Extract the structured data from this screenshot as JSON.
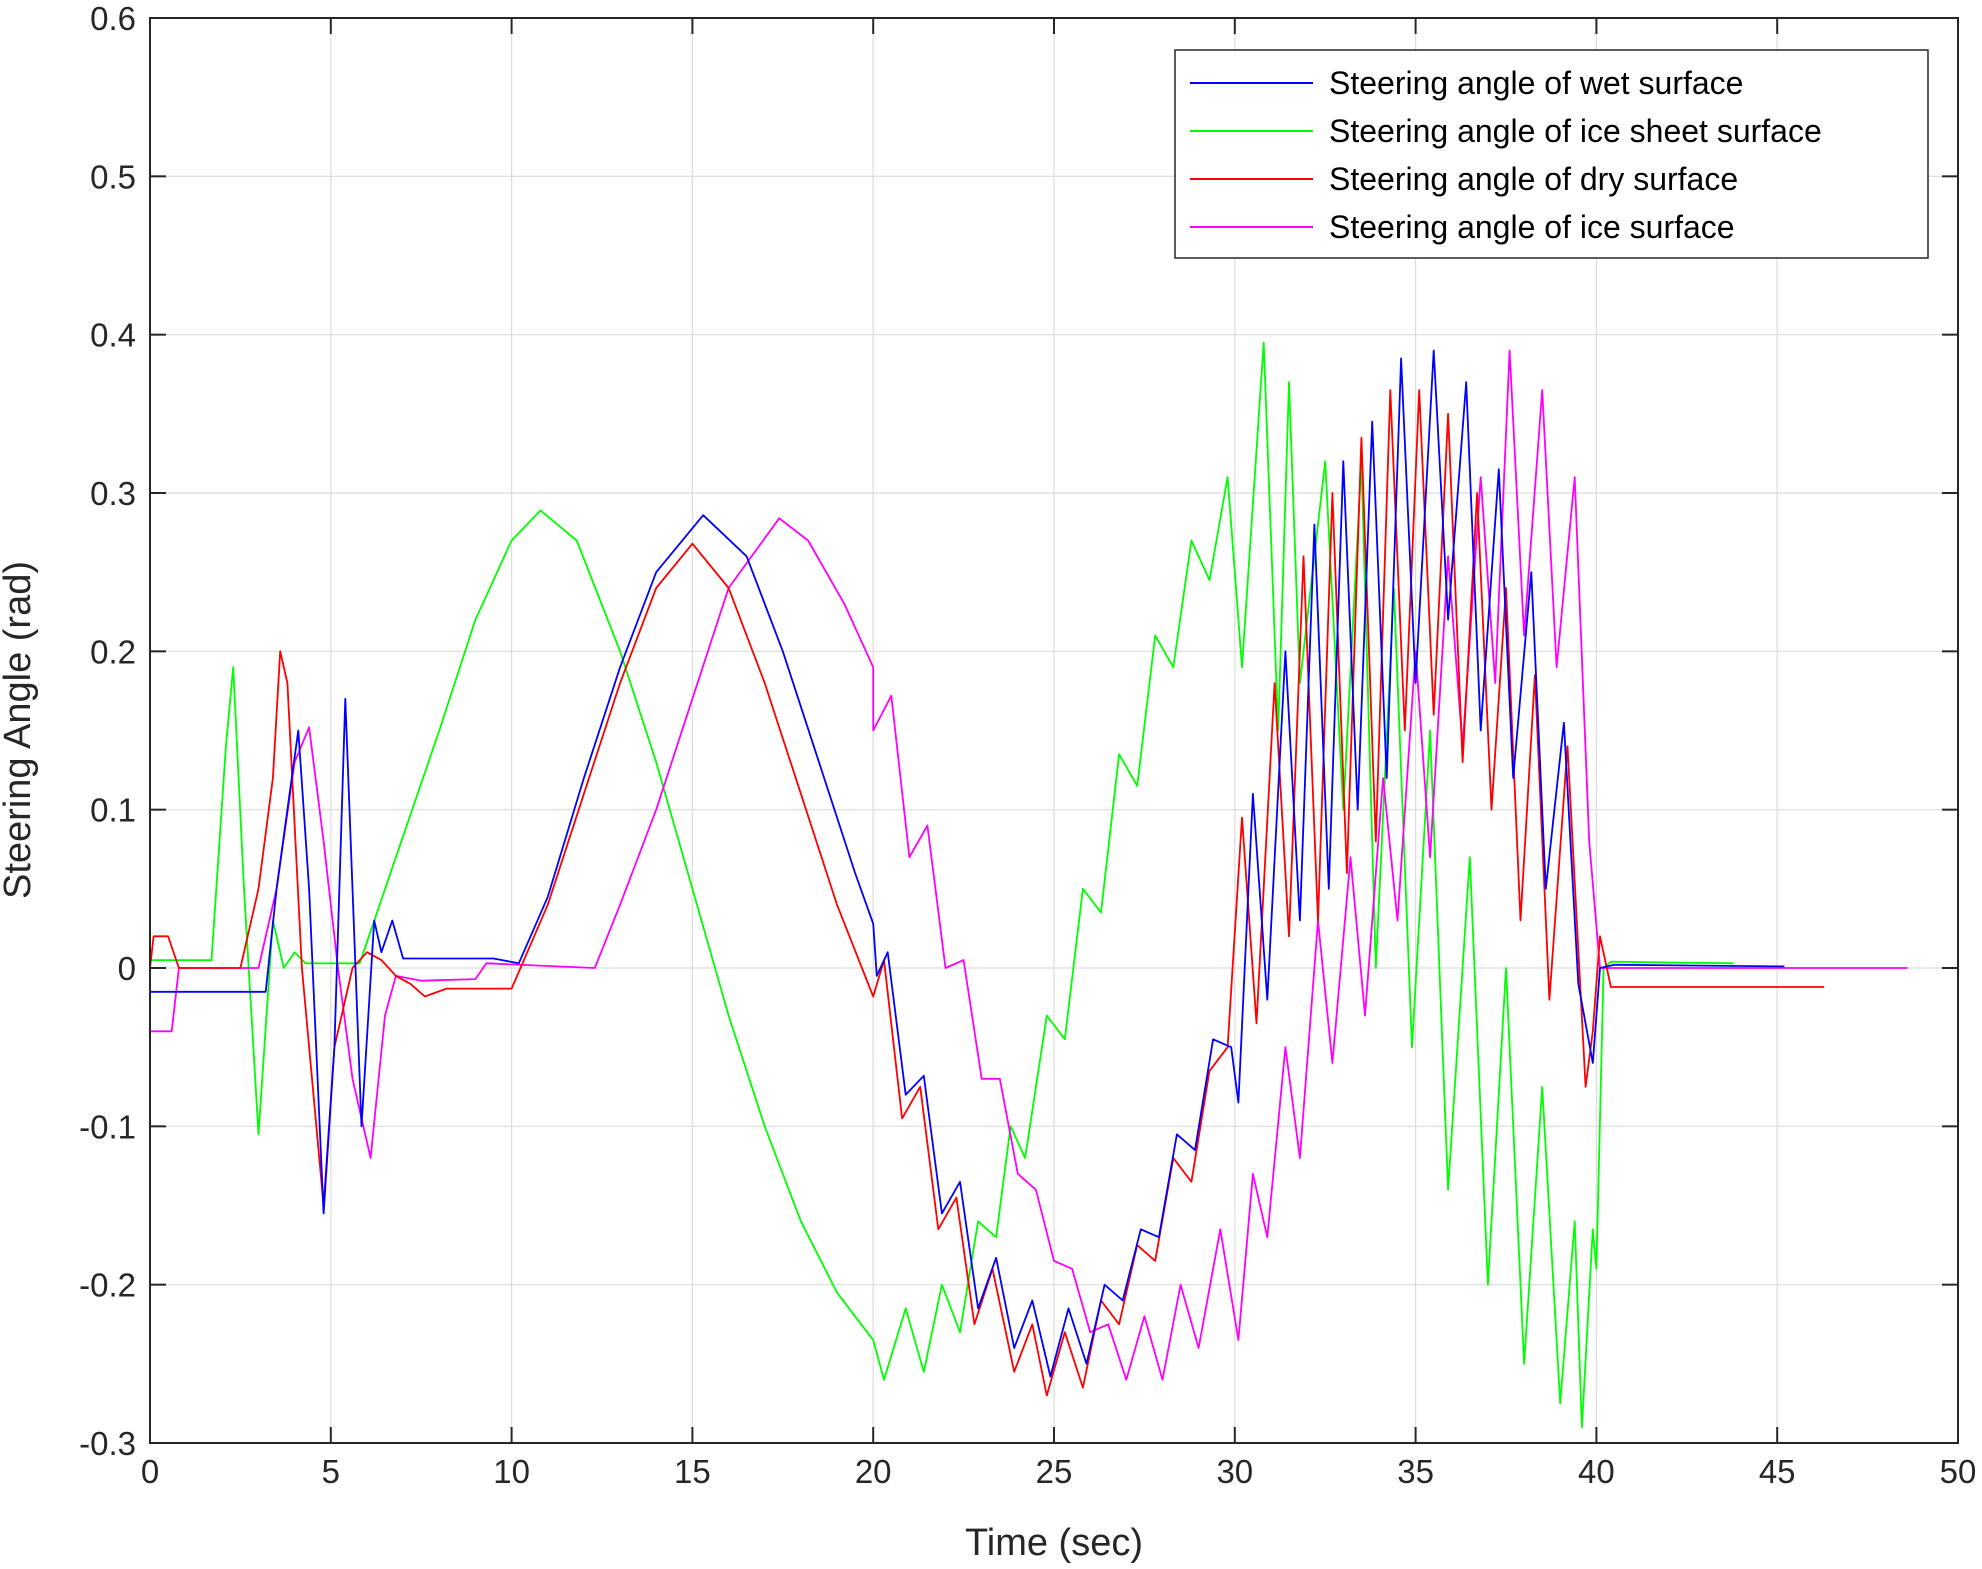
{
  "chart_data": {
    "type": "line",
    "title": "",
    "xlabel": "Time (sec)",
    "ylabel": "Steering Angle (rad)",
    "xlim": [
      0,
      50
    ],
    "ylim": [
      -0.3,
      0.6
    ],
    "xticks": [
      0,
      5,
      10,
      15,
      20,
      25,
      30,
      35,
      40,
      45,
      50
    ],
    "yticks": [
      -0.3,
      -0.2,
      -0.1,
      0,
      0.1,
      0.2,
      0.3,
      0.4,
      0.5,
      0.6
    ],
    "xtick_labels": [
      "0",
      "5",
      "10",
      "15",
      "20",
      "25",
      "30",
      "35",
      "40",
      "45",
      "50"
    ],
    "ytick_labels": [
      "-0.3",
      "-0.2",
      "-0.1",
      "0",
      "0.1",
      "0.2",
      "0.3",
      "0.4",
      "0.5",
      "0.6"
    ],
    "grid": true,
    "legend_position": "top-right",
    "series": [
      {
        "name": "Steering angle of wet surface",
        "color": "#0000ff",
        "points": [
          [
            0,
            -0.015
          ],
          [
            1,
            -0.015
          ],
          [
            2,
            -0.015
          ],
          [
            3.2,
            -0.015
          ],
          [
            3.5,
            0.05
          ],
          [
            3.8,
            0.1
          ],
          [
            4.1,
            0.15
          ],
          [
            4.4,
            0.05
          ],
          [
            4.8,
            -0.155
          ],
          [
            5.1,
            -0.05
          ],
          [
            5.4,
            0.17
          ],
          [
            5.6,
            0.05
          ],
          [
            5.85,
            -0.1
          ],
          [
            6.2,
            0.03
          ],
          [
            6.4,
            0.01
          ],
          [
            6.7,
            0.03
          ],
          [
            7.0,
            0.006
          ],
          [
            8,
            0.006
          ],
          [
            9.5,
            0.006
          ],
          [
            10.2,
            0.003
          ],
          [
            11,
            0.045
          ],
          [
            12,
            0.12
          ],
          [
            13,
            0.19
          ],
          [
            14,
            0.25
          ],
          [
            15.3,
            0.286
          ],
          [
            16.5,
            0.26
          ],
          [
            17.5,
            0.2
          ],
          [
            18.5,
            0.13
          ],
          [
            19.5,
            0.06
          ],
          [
            20.0,
            0.028
          ],
          [
            20.1,
            -0.005
          ],
          [
            20.4,
            0.01
          ],
          [
            20.9,
            -0.08
          ],
          [
            21.4,
            -0.068
          ],
          [
            21.9,
            -0.155
          ],
          [
            22.4,
            -0.135
          ],
          [
            22.9,
            -0.215
          ],
          [
            23.4,
            -0.183
          ],
          [
            23.9,
            -0.24
          ],
          [
            24.4,
            -0.21
          ],
          [
            24.9,
            -0.258
          ],
          [
            25.4,
            -0.215
          ],
          [
            25.9,
            -0.25
          ],
          [
            26.4,
            -0.2
          ],
          [
            26.9,
            -0.21
          ],
          [
            27.4,
            -0.165
          ],
          [
            27.9,
            -0.17
          ],
          [
            28.4,
            -0.105
          ],
          [
            28.9,
            -0.115
          ],
          [
            29.4,
            -0.045
          ],
          [
            29.9,
            -0.05
          ],
          [
            30.1,
            -0.085
          ],
          [
            30.5,
            0.11
          ],
          [
            30.9,
            -0.02
          ],
          [
            31.4,
            0.2
          ],
          [
            31.8,
            0.03
          ],
          [
            32.2,
            0.28
          ],
          [
            32.6,
            0.05
          ],
          [
            33.0,
            0.32
          ],
          [
            33.4,
            0.1
          ],
          [
            33.8,
            0.345
          ],
          [
            34.2,
            0.12
          ],
          [
            34.6,
            0.385
          ],
          [
            35.0,
            0.18
          ],
          [
            35.5,
            0.39
          ],
          [
            35.9,
            0.22
          ],
          [
            36.4,
            0.37
          ],
          [
            36.8,
            0.15
          ],
          [
            37.3,
            0.315
          ],
          [
            37.7,
            0.12
          ],
          [
            38.2,
            0.25
          ],
          [
            38.6,
            0.05
          ],
          [
            39.1,
            0.155
          ],
          [
            39.5,
            -0.01
          ],
          [
            39.9,
            -0.06
          ],
          [
            40.1,
            0.0
          ],
          [
            40.5,
            0.002
          ],
          [
            45.2,
            0.001
          ]
        ]
      },
      {
        "name": "Steering angle of ice sheet surface",
        "color": "#00ff00",
        "points": [
          [
            0,
            0.005
          ],
          [
            1,
            0.005
          ],
          [
            1.7,
            0.005
          ],
          [
            2.1,
            0.14
          ],
          [
            2.3,
            0.19
          ],
          [
            2.6,
            0.05
          ],
          [
            3.0,
            -0.105
          ],
          [
            3.4,
            0.03
          ],
          [
            3.7,
            0.0
          ],
          [
            4.0,
            0.01
          ],
          [
            4.3,
            0.003
          ],
          [
            5,
            0.003
          ],
          [
            5.8,
            0.003
          ],
          [
            6.8,
            0.07
          ],
          [
            8,
            0.15
          ],
          [
            9,
            0.22
          ],
          [
            10,
            0.27
          ],
          [
            10.8,
            0.289
          ],
          [
            11.8,
            0.27
          ],
          [
            13,
            0.2
          ],
          [
            14,
            0.13
          ],
          [
            15,
            0.05
          ],
          [
            16,
            -0.03
          ],
          [
            17,
            -0.1
          ],
          [
            18,
            -0.16
          ],
          [
            19,
            -0.205
          ],
          [
            20.0,
            -0.235
          ],
          [
            20.3,
            -0.26
          ],
          [
            20.9,
            -0.215
          ],
          [
            21.4,
            -0.255
          ],
          [
            21.9,
            -0.2
          ],
          [
            22.4,
            -0.23
          ],
          [
            22.9,
            -0.16
          ],
          [
            23.4,
            -0.17
          ],
          [
            23.8,
            -0.1
          ],
          [
            24.2,
            -0.12
          ],
          [
            24.8,
            -0.03
          ],
          [
            25.3,
            -0.045
          ],
          [
            25.8,
            0.05
          ],
          [
            26.3,
            0.035
          ],
          [
            26.8,
            0.135
          ],
          [
            27.3,
            0.115
          ],
          [
            27.8,
            0.21
          ],
          [
            28.3,
            0.19
          ],
          [
            28.8,
            0.27
          ],
          [
            29.3,
            0.245
          ],
          [
            29.8,
            0.31
          ],
          [
            30.2,
            0.19
          ],
          [
            30.8,
            0.395
          ],
          [
            31.2,
            0.15
          ],
          [
            31.5,
            0.37
          ],
          [
            31.8,
            0.18
          ],
          [
            32.5,
            0.32
          ],
          [
            33,
            0.1
          ],
          [
            33.5,
            0.32
          ],
          [
            33.9,
            0.0
          ],
          [
            34.4,
            0.24
          ],
          [
            34.9,
            -0.05
          ],
          [
            35.4,
            0.15
          ],
          [
            35.9,
            -0.14
          ],
          [
            36.5,
            0.07
          ],
          [
            37.0,
            -0.2
          ],
          [
            37.5,
            0.0
          ],
          [
            38.0,
            -0.25
          ],
          [
            38.5,
            -0.075
          ],
          [
            39.0,
            -0.275
          ],
          [
            39.4,
            -0.16
          ],
          [
            39.6,
            -0.29
          ],
          [
            39.9,
            -0.165
          ],
          [
            40.0,
            -0.19
          ],
          [
            40.2,
            0.0
          ],
          [
            40.4,
            0.004
          ],
          [
            43.8,
            0.003
          ]
        ]
      },
      {
        "name": "Steering angle of dry surface",
        "color": "#ff0000",
        "points": [
          [
            0,
            0.0
          ],
          [
            0.1,
            0.02
          ],
          [
            0.5,
            0.02
          ],
          [
            0.8,
            0.0
          ],
          [
            1.5,
            0.0
          ],
          [
            2.5,
            0.0
          ],
          [
            3.0,
            0.05
          ],
          [
            3.4,
            0.12
          ],
          [
            3.6,
            0.2
          ],
          [
            3.8,
            0.18
          ],
          [
            4.2,
            0.0
          ],
          [
            4.8,
            -0.15
          ],
          [
            5.1,
            -0.05
          ],
          [
            5.6,
            0.0
          ],
          [
            6.0,
            0.01
          ],
          [
            6.4,
            0.005
          ],
          [
            6.8,
            -0.005
          ],
          [
            7.2,
            -0.01
          ],
          [
            7.6,
            -0.018
          ],
          [
            8.2,
            -0.013
          ],
          [
            9.5,
            -0.013
          ],
          [
            10,
            -0.013
          ],
          [
            11,
            0.04
          ],
          [
            12,
            0.11
          ],
          [
            13,
            0.18
          ],
          [
            14,
            0.24
          ],
          [
            15.0,
            0.268
          ],
          [
            16,
            0.24
          ],
          [
            17,
            0.18
          ],
          [
            18,
            0.11
          ],
          [
            19,
            0.04
          ],
          [
            20.0,
            -0.018
          ],
          [
            20.3,
            0.005
          ],
          [
            20.8,
            -0.095
          ],
          [
            21.3,
            -0.075
          ],
          [
            21.8,
            -0.165
          ],
          [
            22.3,
            -0.145
          ],
          [
            22.8,
            -0.225
          ],
          [
            23.3,
            -0.19
          ],
          [
            23.9,
            -0.255
          ],
          [
            24.4,
            -0.225
          ],
          [
            24.8,
            -0.27
          ],
          [
            25.3,
            -0.23
          ],
          [
            25.8,
            -0.265
          ],
          [
            26.3,
            -0.21
          ],
          [
            26.8,
            -0.225
          ],
          [
            27.3,
            -0.175
          ],
          [
            27.8,
            -0.185
          ],
          [
            28.3,
            -0.12
          ],
          [
            28.8,
            -0.135
          ],
          [
            29.3,
            -0.065
          ],
          [
            29.8,
            -0.05
          ],
          [
            30.2,
            0.095
          ],
          [
            30.6,
            -0.035
          ],
          [
            31.1,
            0.18
          ],
          [
            31.5,
            0.02
          ],
          [
            31.9,
            0.26
          ],
          [
            32.3,
            0.03
          ],
          [
            32.7,
            0.3
          ],
          [
            33.1,
            0.06
          ],
          [
            33.5,
            0.335
          ],
          [
            33.9,
            0.08
          ],
          [
            34.3,
            0.365
          ],
          [
            34.7,
            0.15
          ],
          [
            35.1,
            0.365
          ],
          [
            35.5,
            0.16
          ],
          [
            35.9,
            0.35
          ],
          [
            36.3,
            0.13
          ],
          [
            36.7,
            0.3
          ],
          [
            37.1,
            0.1
          ],
          [
            37.5,
            0.24
          ],
          [
            37.9,
            0.03
          ],
          [
            38.3,
            0.185
          ],
          [
            38.7,
            -0.02
          ],
          [
            39.2,
            0.14
          ],
          [
            39.7,
            -0.075
          ],
          [
            39.9,
            -0.04
          ],
          [
            40.1,
            0.02
          ],
          [
            40.4,
            -0.012
          ],
          [
            46.3,
            -0.012
          ]
        ]
      },
      {
        "name": "Steering angle of ice surface",
        "color": "#ff00ff",
        "points": [
          [
            0,
            -0.04
          ],
          [
            0.6,
            -0.04
          ],
          [
            0.8,
            0.0
          ],
          [
            2,
            0.0
          ],
          [
            3.0,
            0.0
          ],
          [
            3.5,
            0.05
          ],
          [
            4.0,
            0.13
          ],
          [
            4.4,
            0.152
          ],
          [
            4.8,
            0.08
          ],
          [
            5.2,
            0.0
          ],
          [
            5.6,
            -0.07
          ],
          [
            6.1,
            -0.12
          ],
          [
            6.5,
            -0.03
          ],
          [
            6.8,
            -0.005
          ],
          [
            7.5,
            -0.008
          ],
          [
            9,
            -0.007
          ],
          [
            9.3,
            0.003
          ],
          [
            12.3,
            0.0
          ],
          [
            13,
            0.04
          ],
          [
            14,
            0.1
          ],
          [
            15,
            0.17
          ],
          [
            16,
            0.24
          ],
          [
            17.4,
            0.284
          ],
          [
            18.2,
            0.27
          ],
          [
            19.2,
            0.23
          ],
          [
            20.0,
            0.19
          ],
          [
            20.0,
            0.15
          ],
          [
            20.5,
            0.172
          ],
          [
            21.0,
            0.07
          ],
          [
            21.5,
            0.09
          ],
          [
            22.0,
            0.0
          ],
          [
            22.5,
            0.005
          ],
          [
            23.0,
            -0.07
          ],
          [
            23.5,
            -0.07
          ],
          [
            24.0,
            -0.13
          ],
          [
            24.5,
            -0.14
          ],
          [
            25.0,
            -0.185
          ],
          [
            25.5,
            -0.19
          ],
          [
            26.0,
            -0.23
          ],
          [
            26.5,
            -0.225
          ],
          [
            27.0,
            -0.26
          ],
          [
            27.5,
            -0.22
          ],
          [
            28.0,
            -0.26
          ],
          [
            28.5,
            -0.2
          ],
          [
            29.0,
            -0.24
          ],
          [
            29.6,
            -0.165
          ],
          [
            30.1,
            -0.235
          ],
          [
            30.5,
            -0.13
          ],
          [
            30.9,
            -0.17
          ],
          [
            31.4,
            -0.05
          ],
          [
            31.8,
            -0.12
          ],
          [
            32.3,
            0.03
          ],
          [
            32.7,
            -0.06
          ],
          [
            33.2,
            0.07
          ],
          [
            33.6,
            -0.03
          ],
          [
            34.1,
            0.12
          ],
          [
            34.5,
            0.03
          ],
          [
            35.0,
            0.2
          ],
          [
            35.4,
            0.07
          ],
          [
            35.9,
            0.26
          ],
          [
            36.3,
            0.14
          ],
          [
            36.8,
            0.31
          ],
          [
            37.2,
            0.18
          ],
          [
            37.6,
            0.39
          ],
          [
            38.0,
            0.21
          ],
          [
            38.5,
            0.365
          ],
          [
            38.9,
            0.19
          ],
          [
            39.4,
            0.31
          ],
          [
            39.8,
            0.08
          ],
          [
            40.1,
            0.0
          ],
          [
            40.5,
            0.0
          ],
          [
            48.6,
            0.0
          ]
        ]
      }
    ]
  }
}
